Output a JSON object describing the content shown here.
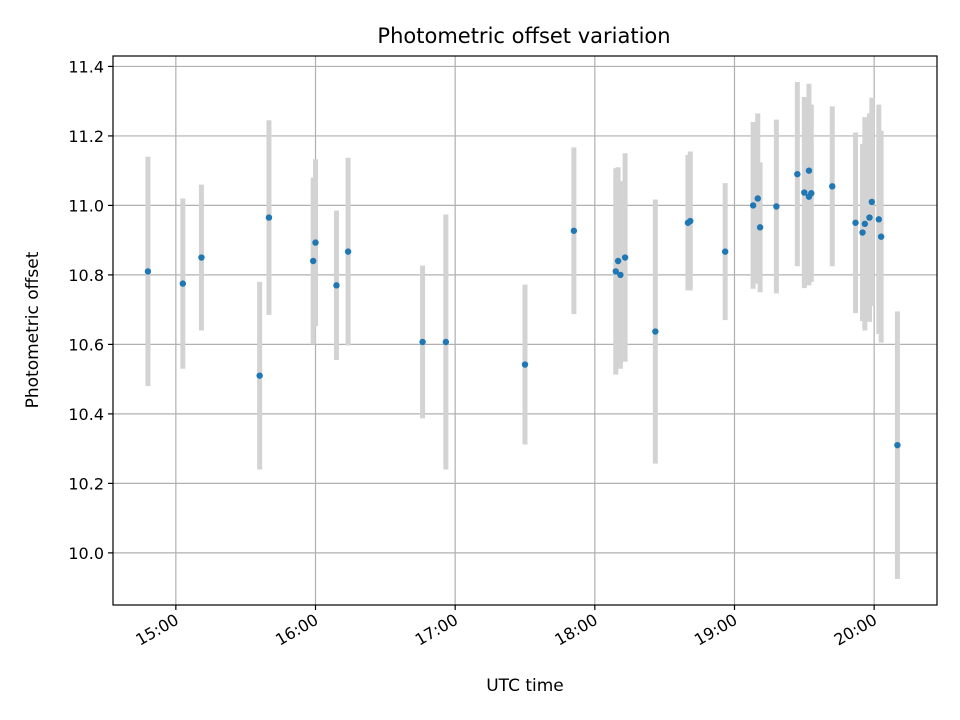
{
  "chart_data": {
    "type": "scatter",
    "title": "Photometric offset variation",
    "xlabel": "UTC time",
    "ylabel": "Photometric offset",
    "x_unit": "UTC time (HH:MM)",
    "xlim": [
      "14:33",
      "20:27"
    ],
    "ylim": [
      9.85,
      11.43
    ],
    "x_ticks": [
      "15:00",
      "16:00",
      "17:00",
      "18:00",
      "19:00",
      "20:00"
    ],
    "y_ticks": [
      "10.0",
      "10.2",
      "10.4",
      "10.6",
      "10.8",
      "11.0",
      "11.2",
      "11.4"
    ],
    "y_tick_values": [
      10.0,
      10.2,
      10.4,
      10.6,
      10.8,
      11.0,
      11.2,
      11.4
    ],
    "grid": true,
    "point_color": "#1f77b4",
    "errorbar_color": "#d3d3d3",
    "series": [
      {
        "points": [
          {
            "x": "14:48",
            "y": 10.81,
            "err": 0.33
          },
          {
            "x": "15:03",
            "y": 10.775,
            "err": 0.245
          },
          {
            "x": "15:11",
            "y": 10.85,
            "err": 0.21
          },
          {
            "x": "15:36",
            "y": 10.51,
            "err": 0.27
          },
          {
            "x": "15:40",
            "y": 10.965,
            "err": 0.28
          },
          {
            "x": "15:59",
            "y": 10.84,
            "err": 0.24
          },
          {
            "x": "16:00",
            "y": 10.893,
            "err": 0.24
          },
          {
            "x": "16:09",
            "y": 10.77,
            "err": 0.215
          },
          {
            "x": "16:14",
            "y": 10.867,
            "err": 0.27
          },
          {
            "x": "16:46",
            "y": 10.607,
            "err": 0.22
          },
          {
            "x": "16:56",
            "y": 10.607,
            "err": 0.367
          },
          {
            "x": "17:30",
            "y": 10.542,
            "err": 0.23
          },
          {
            "x": "17:51",
            "y": 10.927,
            "err": 0.24
          },
          {
            "x": "18:09",
            "y": 10.81,
            "err": 0.297
          },
          {
            "x": "18:10",
            "y": 10.84,
            "err": 0.27
          },
          {
            "x": "18:11",
            "y": 10.8,
            "err": 0.27
          },
          {
            "x": "18:13",
            "y": 10.85,
            "err": 0.3
          },
          {
            "x": "18:26",
            "y": 10.637,
            "err": 0.38
          },
          {
            "x": "18:40",
            "y": 10.95,
            "err": 0.195
          },
          {
            "x": "18:41",
            "y": 10.955,
            "err": 0.2
          },
          {
            "x": "18:56",
            "y": 10.867,
            "err": 0.197
          },
          {
            "x": "19:08",
            "y": 11.0,
            "err": 0.24
          },
          {
            "x": "19:10",
            "y": 11.02,
            "err": 0.245
          },
          {
            "x": "19:11",
            "y": 10.937,
            "err": 0.187
          },
          {
            "x": "19:18",
            "y": 10.997,
            "err": 0.25
          },
          {
            "x": "19:27",
            "y": 11.09,
            "err": 0.265
          },
          {
            "x": "19:30",
            "y": 11.037,
            "err": 0.275
          },
          {
            "x": "19:32",
            "y": 11.1,
            "err": 0.25
          },
          {
            "x": "19:32",
            "y": 11.025,
            "err": 0.255
          },
          {
            "x": "19:33",
            "y": 11.035,
            "err": 0.255
          },
          {
            "x": "19:42",
            "y": 11.055,
            "err": 0.23
          },
          {
            "x": "19:52",
            "y": 10.95,
            "err": 0.26
          },
          {
            "x": "19:55",
            "y": 10.922,
            "err": 0.255
          },
          {
            "x": "19:56",
            "y": 10.947,
            "err": 0.307
          },
          {
            "x": "19:58",
            "y": 10.965,
            "err": 0.3
          },
          {
            "x": "19:59",
            "y": 11.01,
            "err": 0.3
          },
          {
            "x": "20:02",
            "y": 10.96,
            "err": 0.33
          },
          {
            "x": "20:03",
            "y": 10.91,
            "err": 0.305
          },
          {
            "x": "20:10",
            "y": 10.31,
            "err": 0.385
          }
        ]
      }
    ]
  }
}
